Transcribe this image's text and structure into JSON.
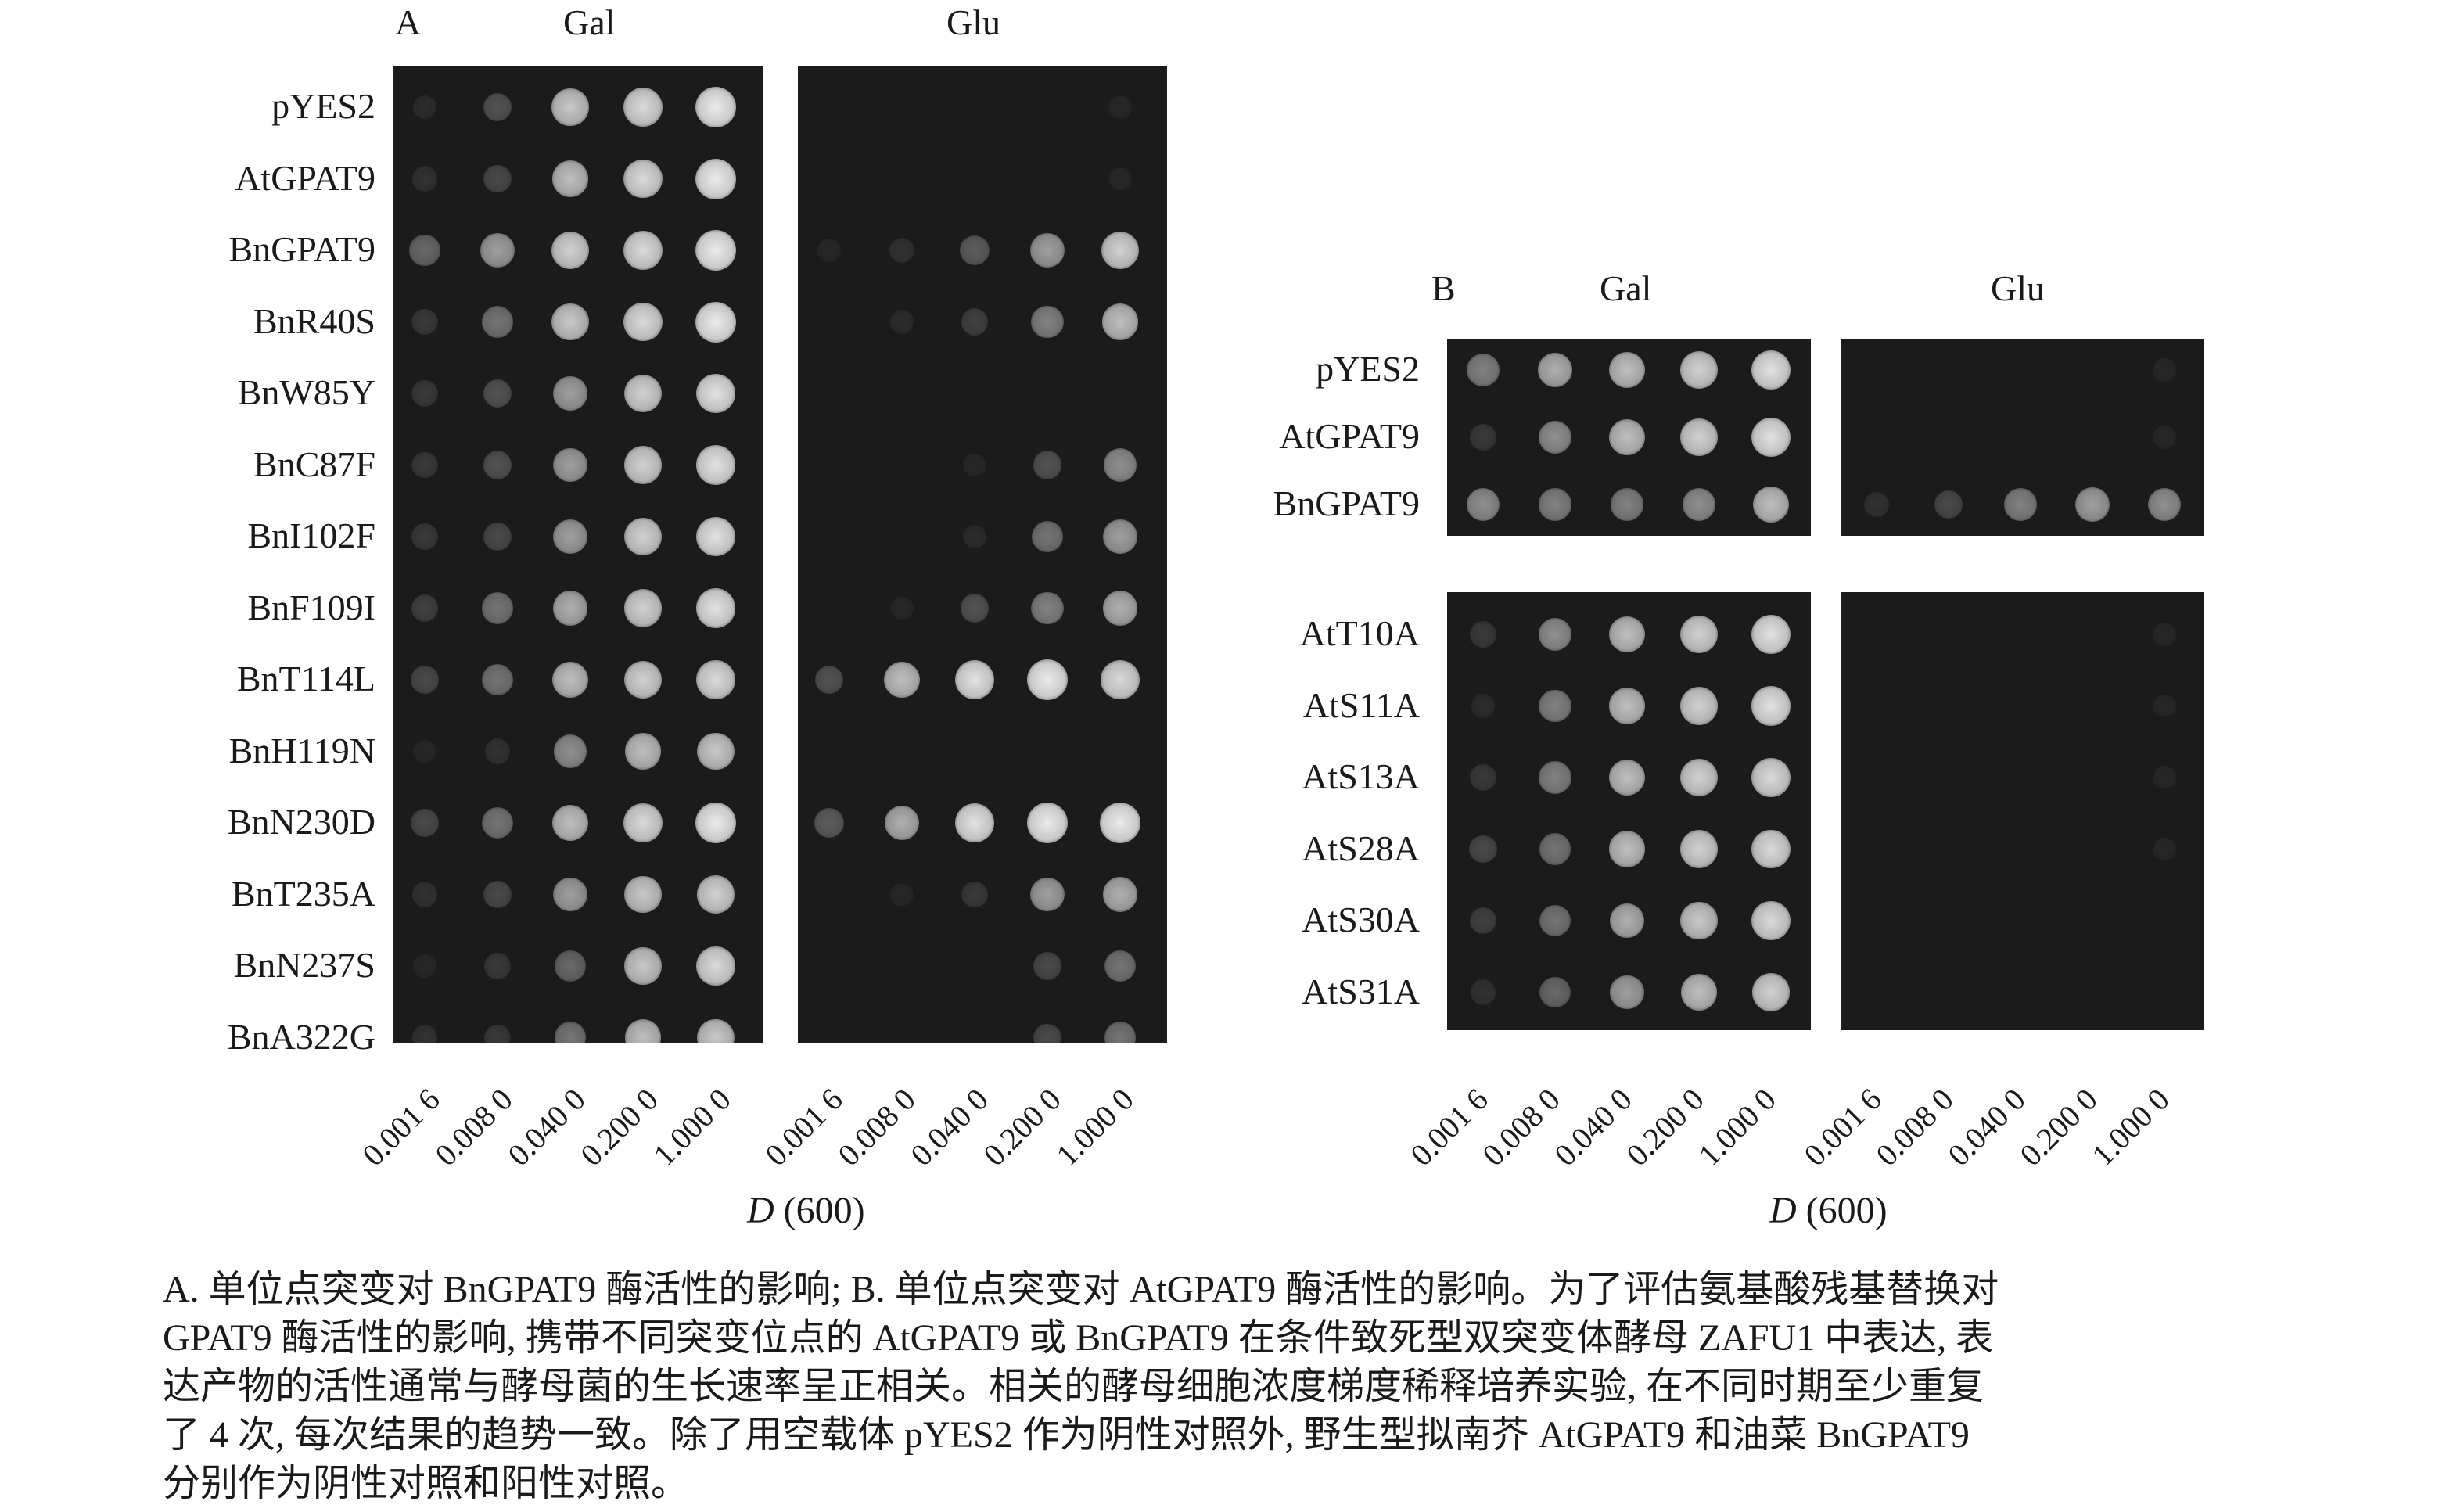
{
  "panelA": {
    "letter": "A",
    "cond_gal": "Gal",
    "cond_glu": "Glu",
    "rows": [
      "pYES2",
      "AtGPAT9",
      "BnGPAT9",
      "BnR40S",
      "BnW85Y",
      "BnC87F",
      "BnI102F",
      "BnF109I",
      "BnT114L",
      "BnH119N",
      "BnN230D",
      "BnT235A",
      "BnN237S",
      "BnA322G"
    ],
    "gal_growth": [
      [
        0.1,
        0.35,
        0.8,
        0.9,
        1
      ],
      [
        0.15,
        0.3,
        0.75,
        0.9,
        1
      ],
      [
        0.45,
        0.65,
        0.85,
        0.9,
        1
      ],
      [
        0.2,
        0.5,
        0.8,
        0.9,
        1
      ],
      [
        0.2,
        0.35,
        0.65,
        0.85,
        0.95
      ],
      [
        0.2,
        0.35,
        0.65,
        0.85,
        0.95
      ],
      [
        0.2,
        0.3,
        0.65,
        0.85,
        0.95
      ],
      [
        0.25,
        0.5,
        0.7,
        0.85,
        0.95
      ],
      [
        0.3,
        0.5,
        0.75,
        0.85,
        0.9
      ],
      [
        0.05,
        0.15,
        0.6,
        0.75,
        0.8
      ],
      [
        0.3,
        0.5,
        0.75,
        0.9,
        1
      ],
      [
        0.15,
        0.3,
        0.65,
        0.8,
        0.85
      ],
      [
        0.05,
        0.2,
        0.45,
        0.8,
        0.9
      ],
      [
        0.15,
        0.2,
        0.5,
        0.75,
        0.8
      ]
    ],
    "glu_growth": [
      [
        0,
        0,
        0,
        0,
        0.05
      ],
      [
        0,
        0,
        0,
        0,
        0.05
      ],
      [
        0.05,
        0.15,
        0.4,
        0.65,
        0.85
      ],
      [
        0,
        0.1,
        0.25,
        0.55,
        0.75
      ],
      [
        0,
        0,
        0,
        0,
        0
      ],
      [
        0,
        0,
        0.05,
        0.35,
        0.6
      ],
      [
        0,
        0,
        0.1,
        0.5,
        0.65
      ],
      [
        0,
        0.05,
        0.35,
        0.55,
        0.7
      ],
      [
        0.35,
        0.75,
        0.95,
        1,
        0.9
      ],
      [
        0,
        0,
        0,
        0,
        0
      ],
      [
        0.4,
        0.7,
        0.95,
        1,
        1
      ],
      [
        0,
        0.05,
        0.2,
        0.65,
        0.7
      ],
      [
        0,
        0,
        0,
        0.3,
        0.5
      ],
      [
        0,
        0,
        0,
        0.3,
        0.5
      ]
    ],
    "ticks": [
      "0.001 6",
      "0.008 0",
      "0.040 0",
      "0.200 0",
      "1.000 0"
    ],
    "xlabel_var": "D",
    "xlabel_rest": "(600)"
  },
  "panelB": {
    "letter": "B",
    "cond_gal": "Gal",
    "cond_glu": "Glu",
    "top_rows": [
      "pYES2",
      "AtGPAT9",
      "BnGPAT9"
    ],
    "bottom_rows": [
      "AtT10A",
      "AtS11A",
      "AtS13A",
      "AtS28A",
      "AtS30A",
      "AtS31A"
    ],
    "gal_top_growth": [
      [
        0.55,
        0.7,
        0.75,
        0.85,
        0.95
      ],
      [
        0.2,
        0.6,
        0.75,
        0.85,
        0.95
      ],
      [
        0.6,
        0.55,
        0.55,
        0.6,
        0.75
      ]
    ],
    "glu_top_growth": [
      [
        0,
        0,
        0,
        0,
        0.05
      ],
      [
        0,
        0,
        0,
        0,
        0.05
      ],
      [
        0.15,
        0.3,
        0.55,
        0.65,
        0.6
      ]
    ],
    "gal_bottom_growth": [
      [
        0.2,
        0.6,
        0.75,
        0.85,
        0.95
      ],
      [
        0.1,
        0.55,
        0.75,
        0.85,
        0.95
      ],
      [
        0.2,
        0.55,
        0.75,
        0.85,
        0.9
      ],
      [
        0.3,
        0.5,
        0.75,
        0.85,
        0.9
      ],
      [
        0.25,
        0.5,
        0.7,
        0.8,
        0.9
      ],
      [
        0.15,
        0.45,
        0.65,
        0.75,
        0.85
      ]
    ],
    "glu_bottom_growth": [
      [
        0,
        0,
        0,
        0,
        0.05
      ],
      [
        0,
        0,
        0,
        0,
        0.05
      ],
      [
        0,
        0,
        0,
        0,
        0.05
      ],
      [
        0,
        0,
        0,
        0,
        0.05
      ],
      [
        0,
        0,
        0,
        0,
        0
      ],
      [
        0,
        0,
        0,
        0,
        0
      ]
    ],
    "ticks": [
      "0.001 6",
      "0.008 0",
      "0.040 0",
      "0.200 0",
      "1.000 0"
    ],
    "xlabel_var": "D",
    "xlabel_rest": "(600)"
  },
  "caption": {
    "line1": "A. 单位点突变对 BnGPAT9 酶活性的影响; B. 单位点突变对 AtGPAT9 酶活性的影响。为了评估氨基酸残基替换对",
    "line2": "GPAT9 酶活性的影响, 携带不同突变位点的 AtGPAT9 或 BnGPAT9 在条件致死型双突变体酵母 ZAFU1 中表达, 表",
    "line3": "达产物的活性通常与酵母菌的生长速率呈正相关。相关的酵母细胞浓度梯度稀释培养实验, 在不同时期至少重复",
    "line4": "了 4 次, 每次结果的趋势一致。除了用空载体 pYES2 作为阴性对照外, 野生型拟南芥 AtGPAT9 和油菜 BnGPAT9",
    "line5": "分别作为阴性对照和阳性对照。"
  }
}
